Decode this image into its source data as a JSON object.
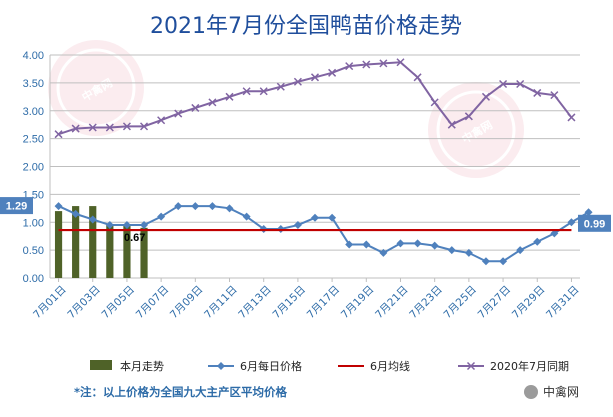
{
  "chart_data": {
    "type": "line",
    "title": "2021年7月份全国鸭苗价格走势",
    "ylim": [
      0,
      4
    ],
    "yticks": [
      "0.00",
      "0.50",
      "1.00",
      "1.50",
      "2.00",
      "2.50",
      "3.00",
      "3.50",
      "4.00"
    ],
    "xticks": [
      "7月01日",
      "7月03日",
      "7月05日",
      "7月07日",
      "7月09日",
      "7月11日",
      "7月13日",
      "7月15日",
      "7月17日",
      "7月19日",
      "7月21日",
      "7月23日",
      "7月25日",
      "7月27日",
      "7月29日",
      "7月31日"
    ],
    "grid": true,
    "legend_position": "bottom",
    "series": [
      {
        "name": "本月走势",
        "kind": "bar",
        "color": "#4f6228",
        "x": [
          "7月01日",
          "7月02日",
          "7月03日",
          "7月04日",
          "7月05日",
          "7月06日"
        ],
        "values": [
          1.2,
          1.29,
          1.29,
          0.95,
          0.95,
          0.9
        ]
      },
      {
        "name": "6月每日价格",
        "kind": "line",
        "color": "#4f81bd",
        "marker": "diamond",
        "values": [
          1.29,
          1.15,
          1.05,
          0.95,
          0.95,
          0.95,
          1.1,
          1.29,
          1.29,
          1.29,
          1.25,
          1.1,
          0.88,
          0.88,
          0.95,
          1.08,
          1.08,
          0.6,
          0.6,
          0.45,
          0.62,
          0.62,
          0.58,
          0.5,
          0.45,
          0.3,
          0.3,
          0.5,
          0.65,
          0.8,
          1.0,
          1.18
        ]
      },
      {
        "name": "6月均线",
        "kind": "line",
        "color": "#c00000",
        "values": [
          0.86,
          0.86
        ]
      },
      {
        "name": "2020年7月同期",
        "kind": "line",
        "color": "#8064a2",
        "marker": "x",
        "values": [
          2.58,
          2.68,
          2.7,
          2.7,
          2.72,
          2.72,
          2.83,
          2.95,
          3.05,
          3.15,
          3.25,
          3.35,
          3.35,
          3.43,
          3.52,
          3.6,
          3.68,
          3.8,
          3.83,
          3.85,
          3.87,
          3.6,
          3.15,
          2.75,
          2.9,
          3.25,
          3.48,
          3.48,
          3.32,
          3.28,
          2.88
        ]
      }
    ],
    "annotations": [
      {
        "text": "1.29",
        "style": "badge"
      },
      {
        "text": "0.67",
        "style": "plain"
      },
      {
        "text": "0.99",
        "style": "badge"
      }
    ]
  },
  "footnote": "*注：以上价格为全国九大主产区平均价格",
  "brand": "中禽网",
  "watermark_text": "中禽网"
}
